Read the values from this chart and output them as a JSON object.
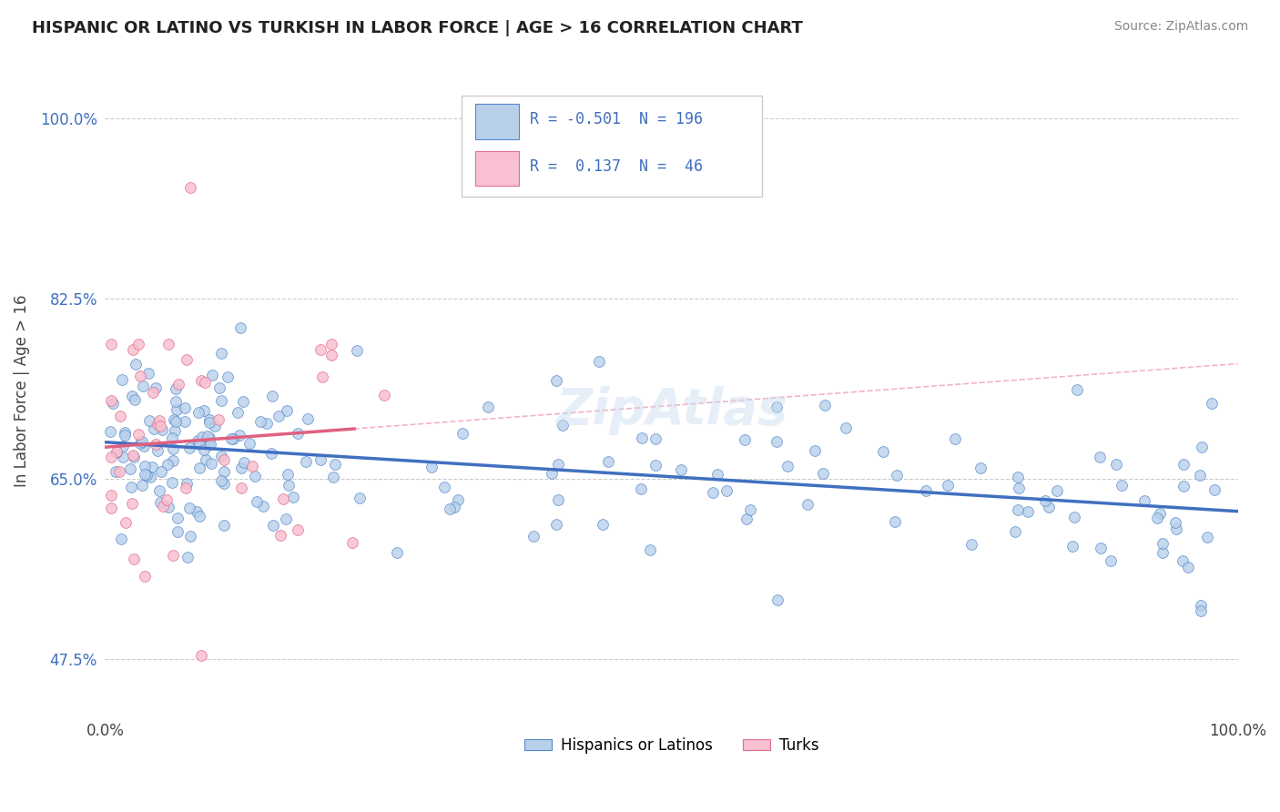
{
  "title": "HISPANIC OR LATINO VS TURKISH IN LABOR FORCE | AGE > 16 CORRELATION CHART",
  "source_text": "Source: ZipAtlas.com",
  "ylabel": "In Labor Force | Age > 16",
  "xlim": [
    0.0,
    1.0
  ],
  "ylim": [
    0.42,
    1.05
  ],
  "ytick_vals": [
    0.475,
    0.65,
    0.825,
    1.0
  ],
  "ytick_labels": [
    "47.5%",
    "65.0%",
    "82.5%",
    "100.0%"
  ],
  "blue_R": "-0.501",
  "blue_N": "196",
  "pink_R": "0.137",
  "pink_N": "46",
  "blue_face_color": "#b8d0ea",
  "blue_edge_color": "#5588cc",
  "pink_face_color": "#f8c0d0",
  "pink_edge_color": "#e07090",
  "blue_line_color": "#4070c0",
  "pink_line_color": "#e06080",
  "pink_dash_color": "#f0a0b8",
  "grid_color": "#cccccc",
  "legend_blue_label": "Hispanics or Latinos",
  "legend_pink_label": "Turks",
  "watermark": "ZipAtlas",
  "seed": 42
}
